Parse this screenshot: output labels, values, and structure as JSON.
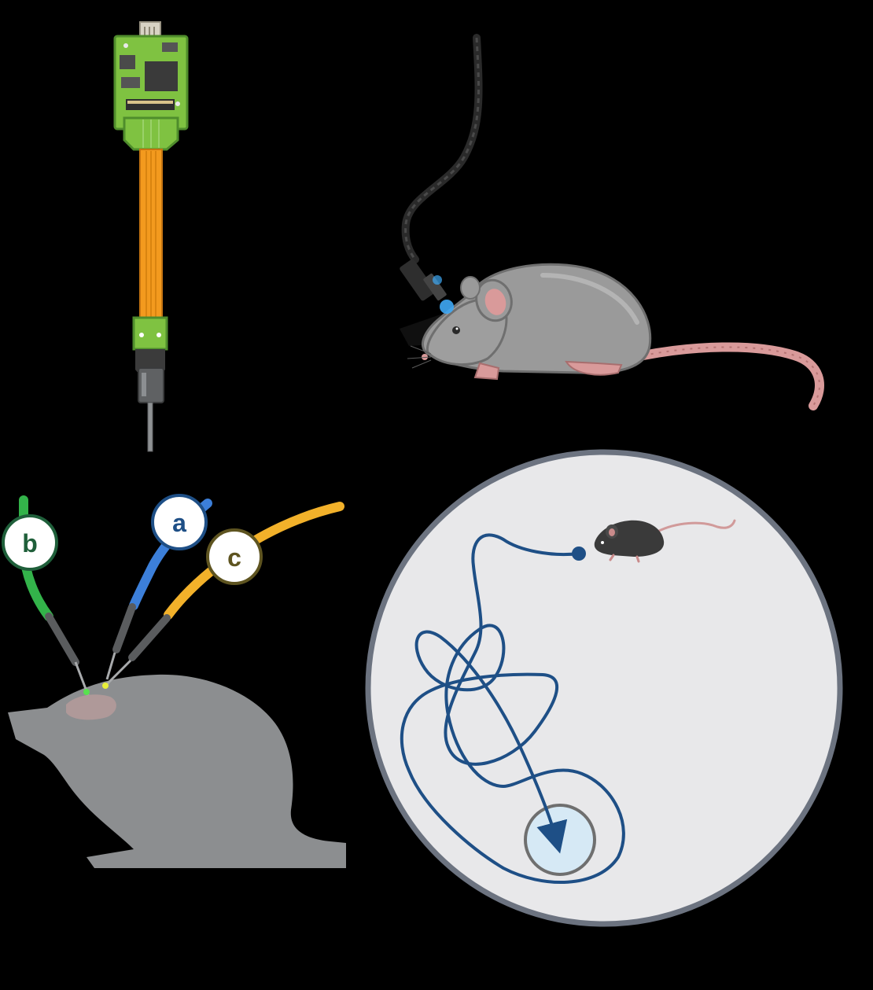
{
  "colors": {
    "background": "#000000",
    "pcb_green": "#7fc241",
    "pcb_dark": "#3f7a2a",
    "flex_cable": "#f39a1e",
    "rat_gray": "#999999",
    "rat_pink": "#d99a9a",
    "arena_fill": "#e8e8ea",
    "arena_border": "#6c7380",
    "trajectory": "#1e4f86",
    "platform_fill": "#d6e9f5",
    "probe_a": "#3c7fd9",
    "probe_b": "#33b34a",
    "probe_c": "#f2b12a",
    "silhouette": "#8c8e90"
  },
  "icons": {
    "headstage": "headstage-probe-icon",
    "tethered_rat": "tethered-rat-icon",
    "small_mouse": "black-mouse-icon",
    "implant_rat": "rat-silhouette-icon"
  },
  "labels": {
    "probe_a": "a",
    "probe_b": "b",
    "probe_c": "c"
  }
}
